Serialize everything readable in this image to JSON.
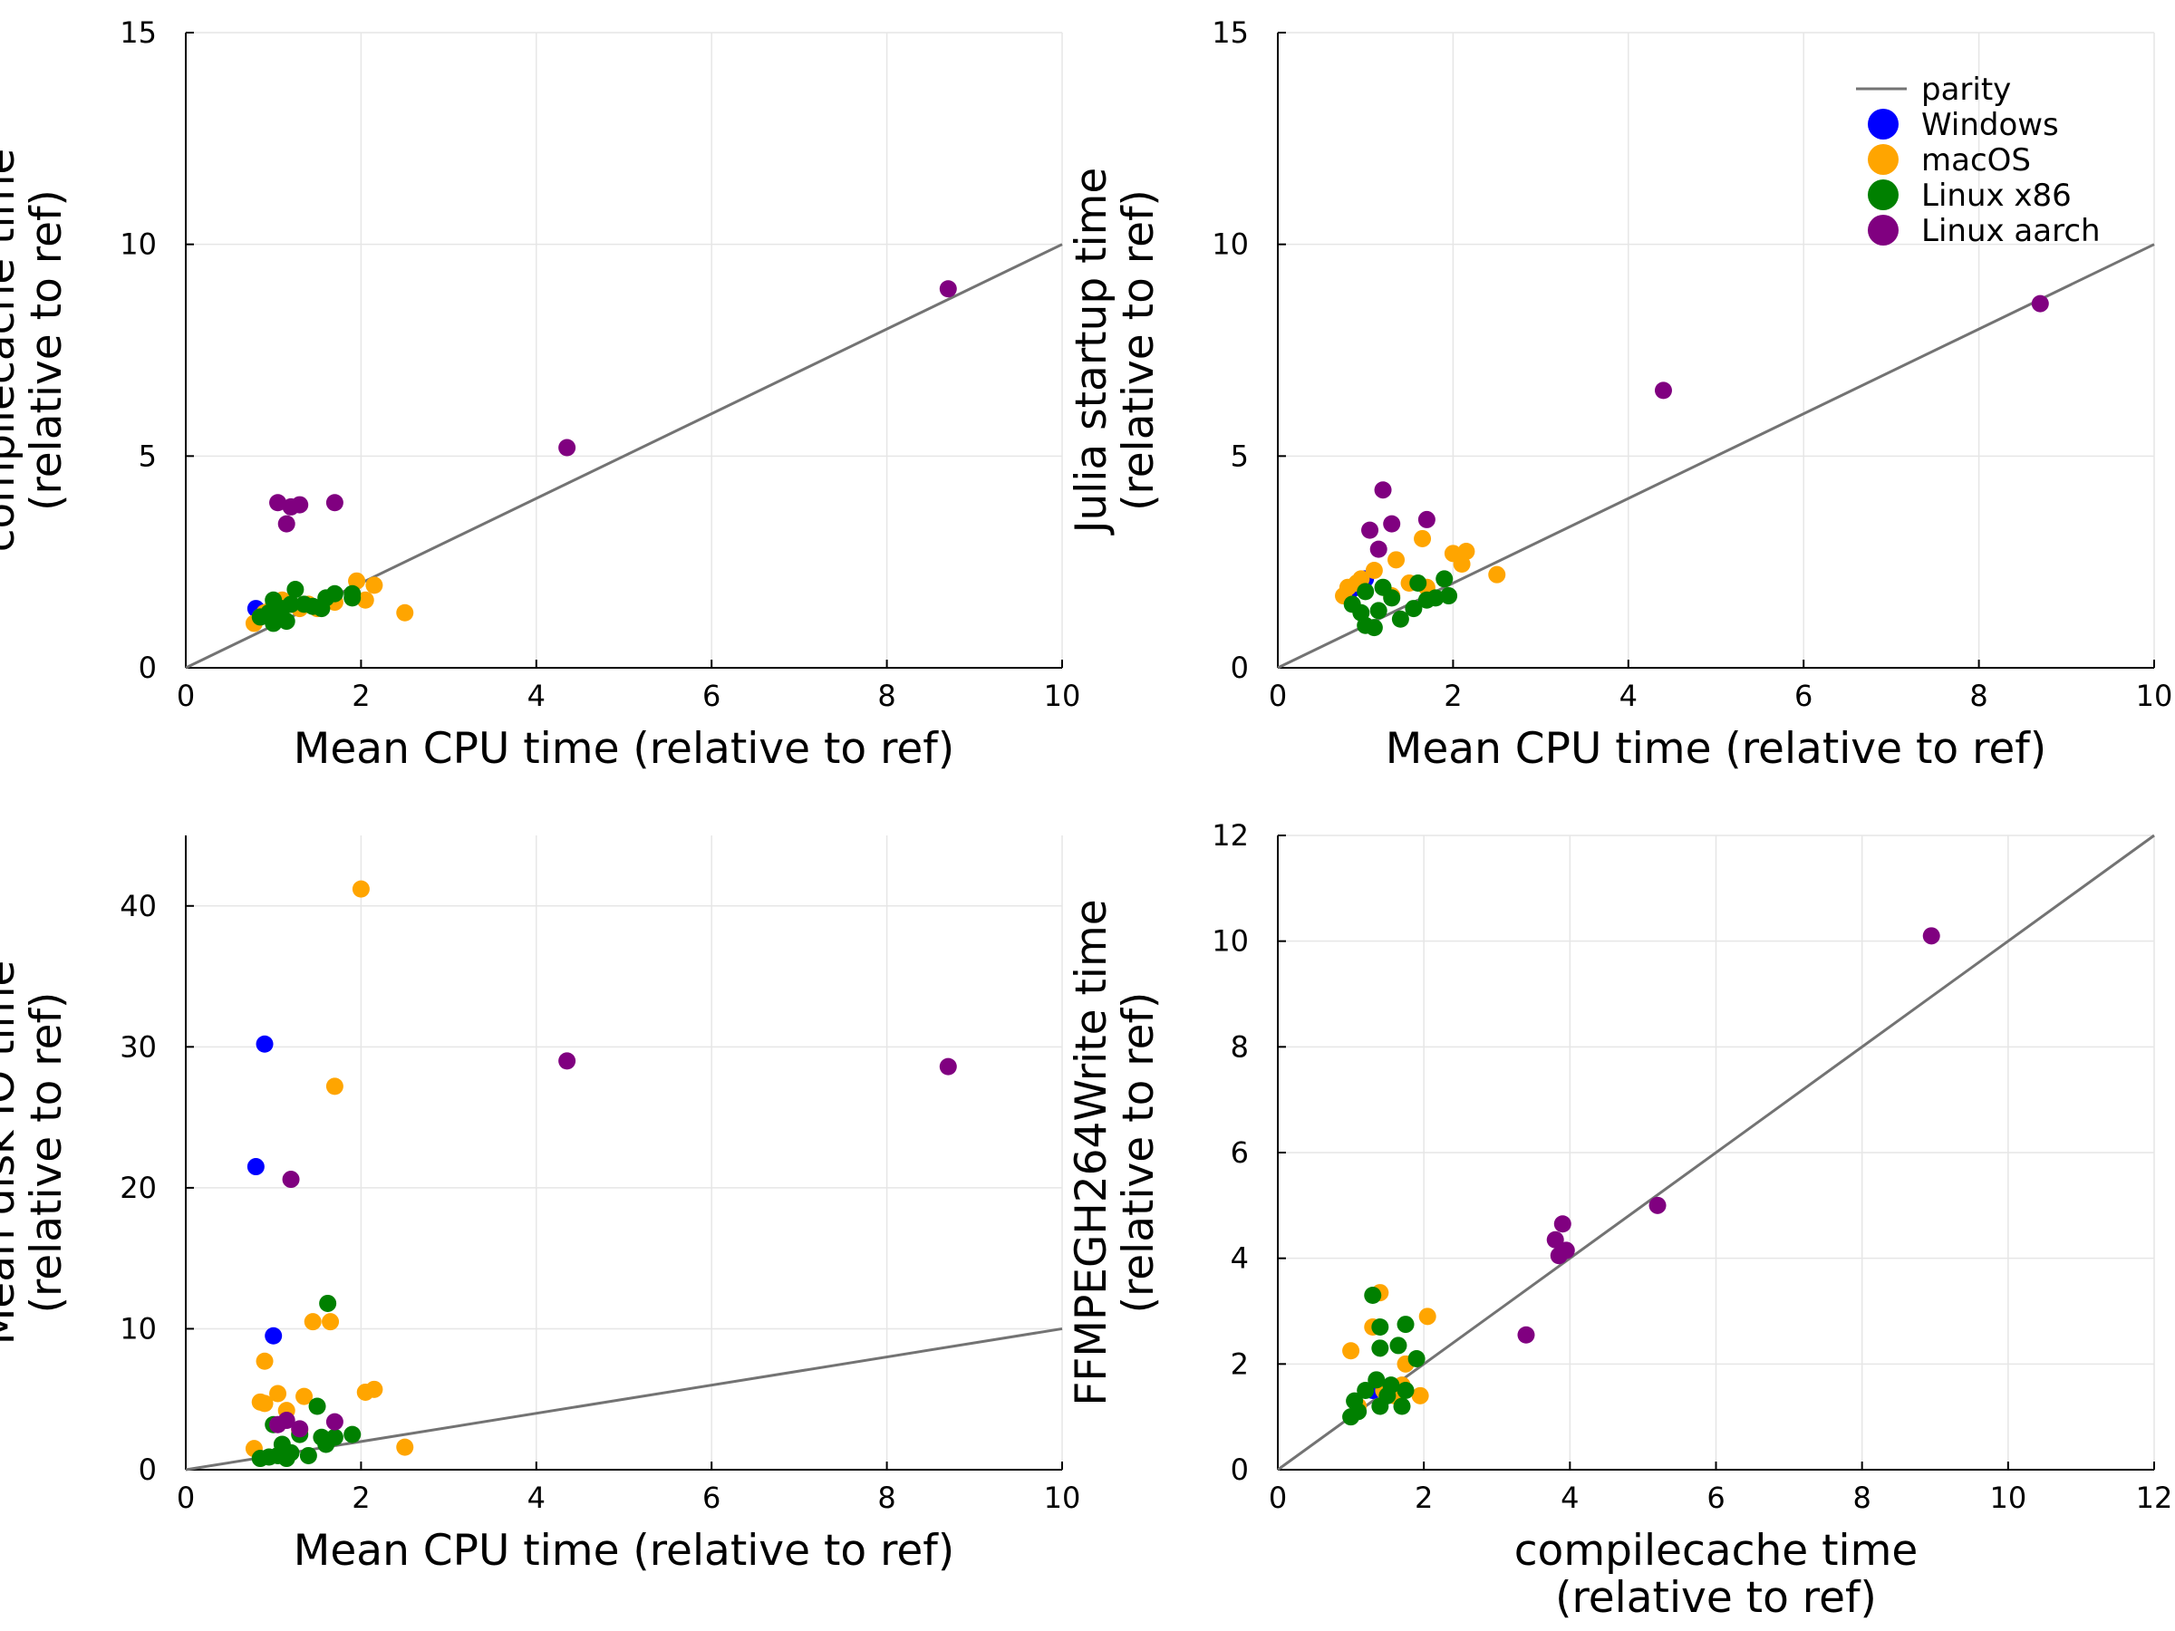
{
  "chart_data": [
    {
      "type": "scatter",
      "xlabel": [
        "Mean CPU time (relative to ref)"
      ],
      "ylabel": [
        "compilecache time",
        "(relative to ref)"
      ],
      "xlim": [
        0,
        10
      ],
      "ylim": [
        0,
        15
      ],
      "xticks": [
        "0",
        "2",
        "4",
        "6",
        "8",
        "10"
      ],
      "yticks": [
        "0",
        "5",
        "10",
        "15"
      ],
      "grid": true,
      "legend": null,
      "parity": [
        [
          0,
          0
        ],
        [
          10,
          10
        ]
      ],
      "series": [
        {
          "key": "windows",
          "color": "#0000ff",
          "points": [
            [
              0.8,
              1.4
            ],
            [
              0.9,
              1.3
            ],
            [
              1.0,
              1.2
            ]
          ]
        },
        {
          "key": "macos",
          "color": "#ffa500",
          "points": [
            [
              0.78,
              1.05
            ],
            [
              0.85,
              1.2
            ],
            [
              0.9,
              1.3
            ],
            [
              1.0,
              1.5
            ],
            [
              1.05,
              1.4
            ],
            [
              1.1,
              1.6
            ],
            [
              1.2,
              1.5
            ],
            [
              1.3,
              1.4
            ],
            [
              1.4,
              1.5
            ],
            [
              1.5,
              1.4
            ],
            [
              1.7,
              1.55
            ],
            [
              1.95,
              2.05
            ],
            [
              2.05,
              1.6
            ],
            [
              2.15,
              1.95
            ],
            [
              2.5,
              1.3
            ]
          ]
        },
        {
          "key": "linux-x86",
          "color": "#008000",
          "points": [
            [
              0.85,
              1.2
            ],
            [
              0.95,
              1.3
            ],
            [
              1.0,
              1.05
            ],
            [
              1.0,
              1.6
            ],
            [
              1.05,
              1.2
            ],
            [
              1.1,
              1.4
            ],
            [
              1.15,
              1.1
            ],
            [
              1.2,
              1.5
            ],
            [
              1.25,
              1.85
            ],
            [
              1.35,
              1.5
            ],
            [
              1.45,
              1.45
            ],
            [
              1.55,
              1.4
            ],
            [
              1.6,
              1.65
            ],
            [
              1.7,
              1.75
            ],
            [
              1.9,
              1.75
            ],
            [
              1.9,
              1.65
            ]
          ]
        },
        {
          "key": "linux-aarch",
          "color": "#800080",
          "points": [
            [
              1.05,
              3.9
            ],
            [
              1.15,
              3.4
            ],
            [
              1.2,
              3.8
            ],
            [
              1.3,
              3.85
            ],
            [
              1.7,
              3.9
            ],
            [
              4.35,
              5.2
            ],
            [
              8.7,
              8.95
            ]
          ]
        }
      ]
    },
    {
      "type": "scatter",
      "xlabel": [
        "Mean CPU time (relative to ref)"
      ],
      "ylabel": [
        "Julia startup time",
        "(relative to ref)"
      ],
      "xlim": [
        0,
        10
      ],
      "ylim": [
        0,
        15
      ],
      "xticks": [
        "0",
        "2",
        "4",
        "6",
        "8",
        "10"
      ],
      "yticks": [
        "0",
        "5",
        "10",
        "15"
      ],
      "grid": true,
      "legend": {
        "placement": "top-right",
        "parity_label": "parity",
        "entries": [
          {
            "label": "Windows",
            "color": "#0000ff"
          },
          {
            "label": "macOS",
            "color": "#ffa500"
          },
          {
            "label": "Linux x86",
            "color": "#008000"
          },
          {
            "label": "Linux aarch",
            "color": "#800080"
          }
        ]
      },
      "parity": [
        [
          0,
          0
        ],
        [
          10,
          10
        ]
      ],
      "series": [
        {
          "key": "windows",
          "color": "#0000ff",
          "points": [
            [
              0.8,
              1.7
            ],
            [
              0.9,
              1.9
            ],
            [
              1.0,
              2.1
            ]
          ]
        },
        {
          "key": "macos",
          "color": "#ffa500",
          "points": [
            [
              0.75,
              1.7
            ],
            [
              0.8,
              1.9
            ],
            [
              0.9,
              2.0
            ],
            [
              0.95,
              2.1
            ],
            [
              1.1,
              2.3
            ],
            [
              1.3,
              1.7
            ],
            [
              1.35,
              2.55
            ],
            [
              1.5,
              2.0
            ],
            [
              1.65,
              3.05
            ],
            [
              1.7,
              1.9
            ],
            [
              2.0,
              2.7
            ],
            [
              2.1,
              2.45
            ],
            [
              2.15,
              2.75
            ],
            [
              2.5,
              2.2
            ]
          ]
        },
        {
          "key": "linux-x86",
          "color": "#008000",
          "points": [
            [
              0.85,
              1.5
            ],
            [
              0.95,
              1.3
            ],
            [
              1.0,
              1.0
            ],
            [
              1.0,
              1.8
            ],
            [
              1.1,
              0.95
            ],
            [
              1.15,
              1.35
            ],
            [
              1.2,
              1.9
            ],
            [
              1.3,
              1.65
            ],
            [
              1.4,
              1.15
            ],
            [
              1.55,
              1.4
            ],
            [
              1.6,
              2.0
            ],
            [
              1.7,
              1.6
            ],
            [
              1.8,
              1.65
            ],
            [
              1.9,
              2.1
            ],
            [
              1.95,
              1.7
            ]
          ]
        },
        {
          "key": "linux-aarch",
          "color": "#800080",
          "points": [
            [
              1.05,
              3.25
            ],
            [
              1.15,
              2.8
            ],
            [
              1.2,
              4.2
            ],
            [
              1.3,
              3.4
            ],
            [
              1.7,
              3.5
            ],
            [
              4.4,
              6.55
            ],
            [
              8.7,
              8.6
            ]
          ]
        }
      ]
    },
    {
      "type": "scatter",
      "xlabel": [
        "Mean CPU time (relative to ref)"
      ],
      "ylabel": [
        "Mean disk IO time",
        "(relative to ref)"
      ],
      "xlim": [
        0,
        10
      ],
      "ylim": [
        0,
        45
      ],
      "xticks": [
        "0",
        "2",
        "4",
        "6",
        "8",
        "10"
      ],
      "yticks": [
        "0",
        "10",
        "20",
        "30",
        "40"
      ],
      "grid": true,
      "legend": null,
      "parity": [
        [
          0,
          0
        ],
        [
          10,
          10
        ]
      ],
      "series": [
        {
          "key": "windows",
          "color": "#0000ff",
          "points": [
            [
              0.8,
              21.5
            ],
            [
              0.9,
              30.2
            ],
            [
              1.0,
              9.5
            ]
          ]
        },
        {
          "key": "macos",
          "color": "#ffa500",
          "points": [
            [
              0.78,
              1.5
            ],
            [
              0.85,
              4.8
            ],
            [
              0.9,
              4.7
            ],
            [
              0.9,
              7.7
            ],
            [
              1.05,
              5.4
            ],
            [
              1.15,
              4.2
            ],
            [
              1.3,
              2.8
            ],
            [
              1.35,
              5.2
            ],
            [
              1.45,
              10.5
            ],
            [
              1.65,
              10.5
            ],
            [
              1.7,
              27.2
            ],
            [
              2.0,
              41.2
            ],
            [
              2.05,
              5.5
            ],
            [
              2.15,
              5.7
            ],
            [
              2.5,
              1.6
            ]
          ]
        },
        {
          "key": "linux-x86",
          "color": "#008000",
          "points": [
            [
              0.85,
              0.8
            ],
            [
              0.95,
              0.9
            ],
            [
              1.0,
              3.2
            ],
            [
              1.05,
              1.0
            ],
            [
              1.1,
              1.8
            ],
            [
              1.15,
              0.8
            ],
            [
              1.2,
              1.2
            ],
            [
              1.3,
              2.5
            ],
            [
              1.4,
              1.0
            ],
            [
              1.5,
              4.5
            ],
            [
              1.55,
              2.3
            ],
            [
              1.6,
              1.8
            ],
            [
              1.62,
              11.8
            ],
            [
              1.7,
              2.3
            ],
            [
              1.9,
              2.5
            ]
          ]
        },
        {
          "key": "linux-aarch",
          "color": "#800080",
          "points": [
            [
              1.05,
              3.2
            ],
            [
              1.15,
              3.5
            ],
            [
              1.2,
              20.6
            ],
            [
              1.3,
              2.9
            ],
            [
              1.7,
              3.4
            ],
            [
              4.35,
              29.0
            ],
            [
              8.7,
              28.6
            ]
          ]
        }
      ]
    },
    {
      "type": "scatter",
      "xlabel": [
        "compilecache time",
        "(relative to ref)"
      ],
      "ylabel": [
        "FFMPEGH264Write time",
        "(relative to ref)"
      ],
      "xlim": [
        0,
        12
      ],
      "ylim": [
        0,
        12
      ],
      "xticks": [
        "0",
        "2",
        "4",
        "6",
        "8",
        "10",
        "12"
      ],
      "yticks": [
        "0",
        "2",
        "4",
        "6",
        "8",
        "10",
        "12"
      ],
      "grid": true,
      "legend": null,
      "parity": [
        [
          0,
          0
        ],
        [
          12,
          12
        ]
      ],
      "series": [
        {
          "key": "windows",
          "color": "#0000ff",
          "points": [
            [
              1.3,
              1.5
            ]
          ]
        },
        {
          "key": "macos",
          "color": "#ffa500",
          "points": [
            [
              1.0,
              2.25
            ],
            [
              1.1,
              1.2
            ],
            [
              1.3,
              2.7
            ],
            [
              1.4,
              3.35
            ],
            [
              1.45,
              1.5
            ],
            [
              1.6,
              1.4
            ],
            [
              1.7,
              1.6
            ],
            [
              1.75,
              2.0
            ],
            [
              1.95,
              1.4
            ],
            [
              2.05,
              2.9
            ]
          ]
        },
        {
          "key": "linux-x86",
          "color": "#008000",
          "points": [
            [
              1.0,
              1.0
            ],
            [
              1.05,
              1.3
            ],
            [
              1.1,
              1.1
            ],
            [
              1.2,
              1.5
            ],
            [
              1.3,
              3.3
            ],
            [
              1.35,
              1.7
            ],
            [
              1.4,
              1.2
            ],
            [
              1.4,
              2.3
            ],
            [
              1.4,
              2.7
            ],
            [
              1.5,
              1.4
            ],
            [
              1.55,
              1.6
            ],
            [
              1.65,
              2.35
            ],
            [
              1.7,
              1.2
            ],
            [
              1.75,
              1.5
            ],
            [
              1.75,
              2.75
            ],
            [
              1.9,
              2.1
            ]
          ]
        },
        {
          "key": "linux-aarch",
          "color": "#800080",
          "points": [
            [
              3.4,
              2.55
            ],
            [
              3.8,
              4.35
            ],
            [
              3.85,
              4.05
            ],
            [
              3.9,
              4.65
            ],
            [
              3.95,
              4.15
            ],
            [
              5.2,
              5.0
            ],
            [
              8.95,
              10.1
            ]
          ]
        }
      ]
    }
  ]
}
